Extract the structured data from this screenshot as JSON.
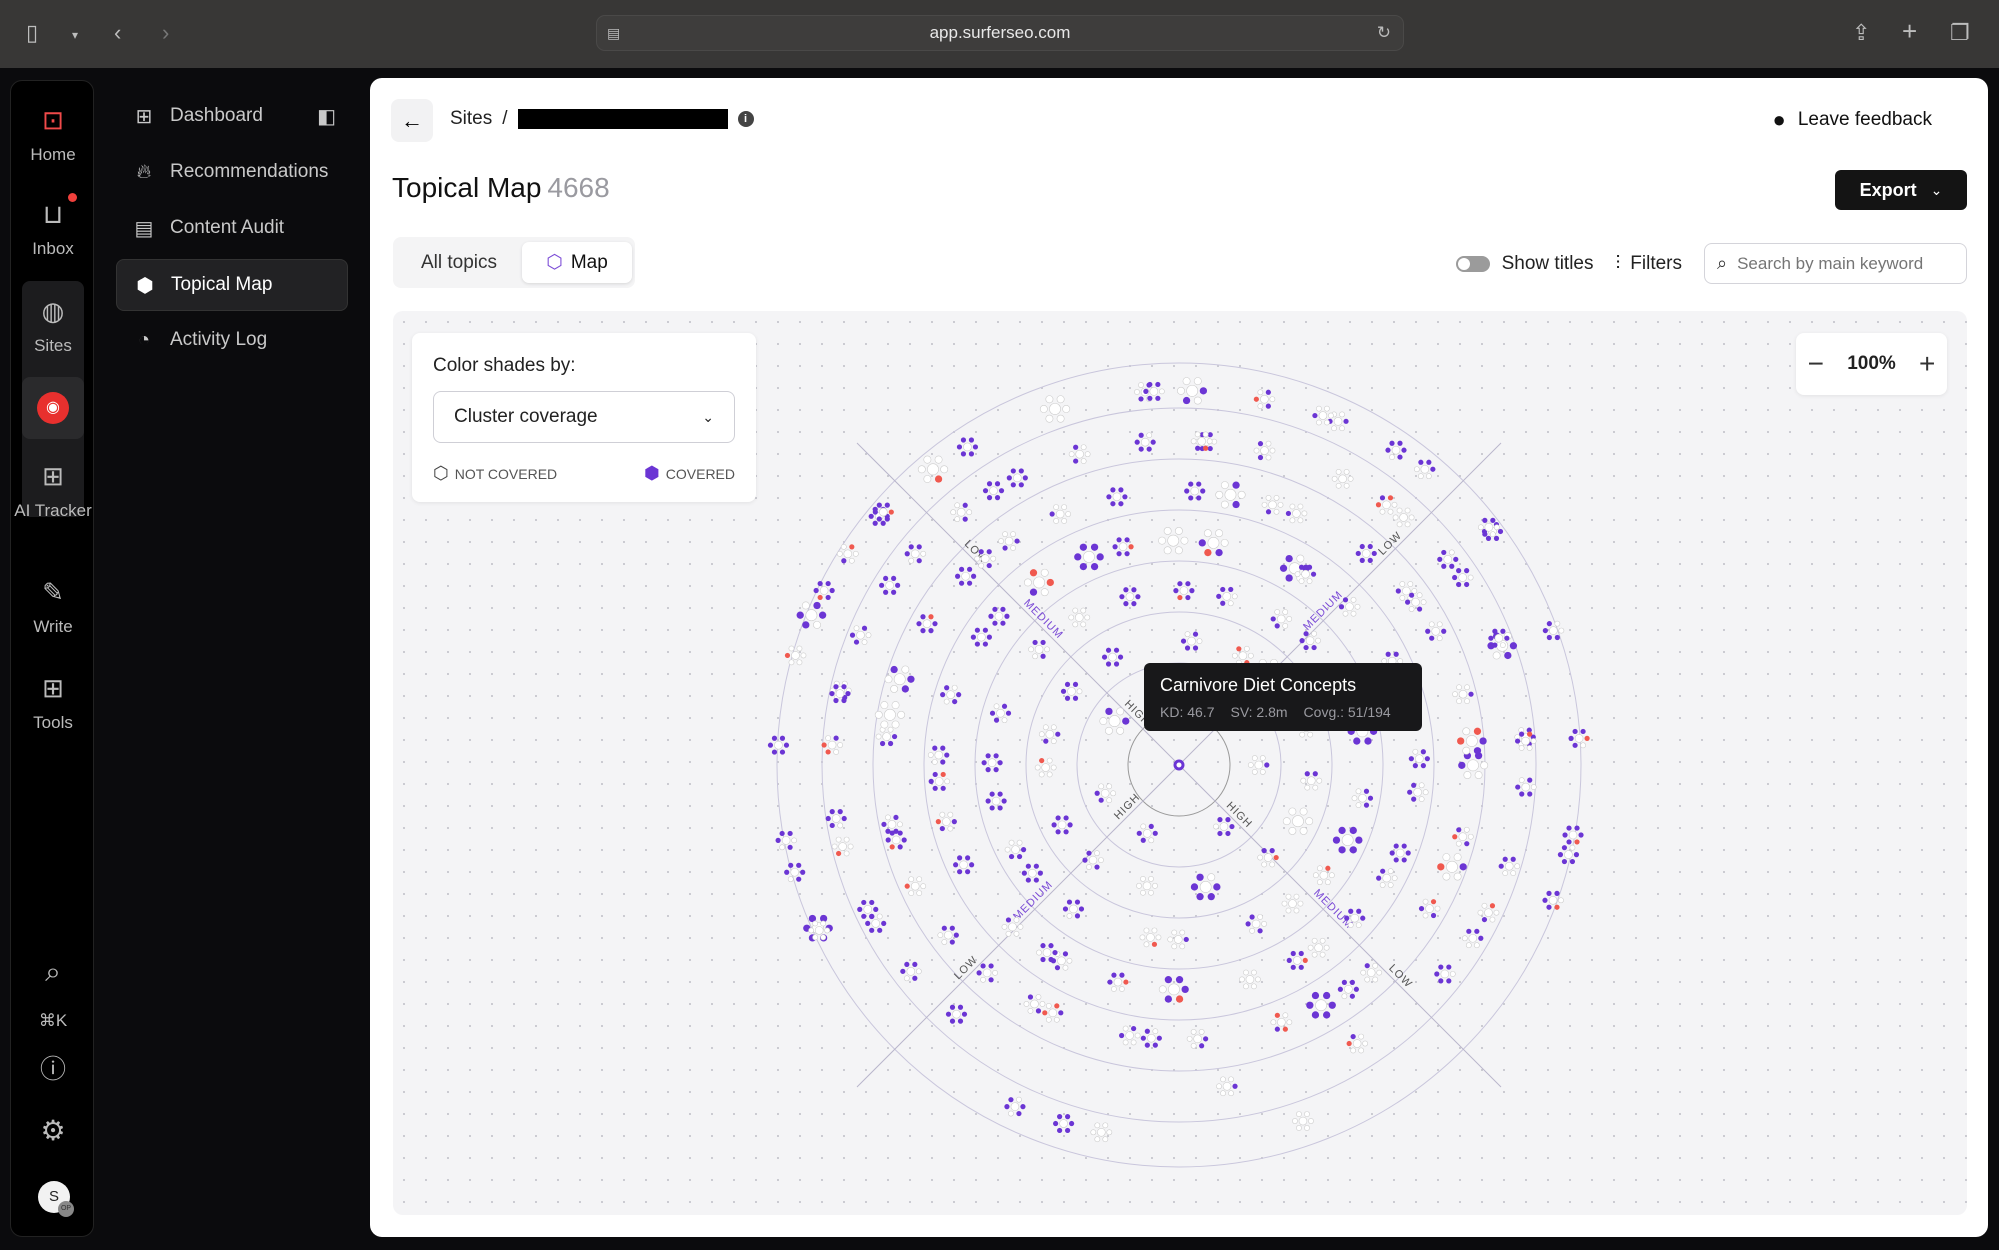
{
  "browser": {
    "url": "app.surferseo.com"
  },
  "rail": {
    "items": [
      {
        "label": "Home"
      },
      {
        "label": "Inbox"
      },
      {
        "label": "Sites"
      },
      {
        "label": "AI Tracker"
      },
      {
        "label": "Write"
      },
      {
        "label": "Tools"
      }
    ],
    "shortcut": "⌘K",
    "avatar": "S",
    "avatar_badge": "OP"
  },
  "nav": {
    "items": [
      {
        "label": "Dashboard"
      },
      {
        "label": "Recommendations"
      },
      {
        "label": "Content Audit"
      },
      {
        "label": "Topical Map",
        "active": true
      },
      {
        "label": "Activity Log"
      }
    ]
  },
  "header": {
    "breadcrumb_root": "Sites",
    "separator": "/",
    "feedback": "Leave feedback",
    "title": "Topical Map",
    "count": "4668",
    "export": "Export"
  },
  "tabs": [
    {
      "label": "All topics"
    },
    {
      "label": "Map",
      "active": true
    }
  ],
  "toolbar": {
    "show_titles": "Show titles",
    "show_titles_on": false,
    "filters": "Filters",
    "search_placeholder": "Search by main keyword"
  },
  "legend": {
    "label": "Color shades by:",
    "selected": "Cluster coverage",
    "not_covered": "NOT COVERED",
    "covered": "COVERED"
  },
  "zoom": {
    "level": "100%"
  },
  "map": {
    "axis_labels": {
      "low": "LOW",
      "medium": "MEDIUM",
      "high": "HIGH"
    },
    "colors": {
      "covered": "#6b35d4",
      "highlight": "#f0594f",
      "uncovered": "#ffffff",
      "ring": "#c9c6dc"
    }
  },
  "tooltip": {
    "title": "Carnivore Diet Concepts",
    "kd": "KD: 46.7",
    "sv": "SV: 2.8m",
    "coverage": "Covg.: 51/194"
  }
}
